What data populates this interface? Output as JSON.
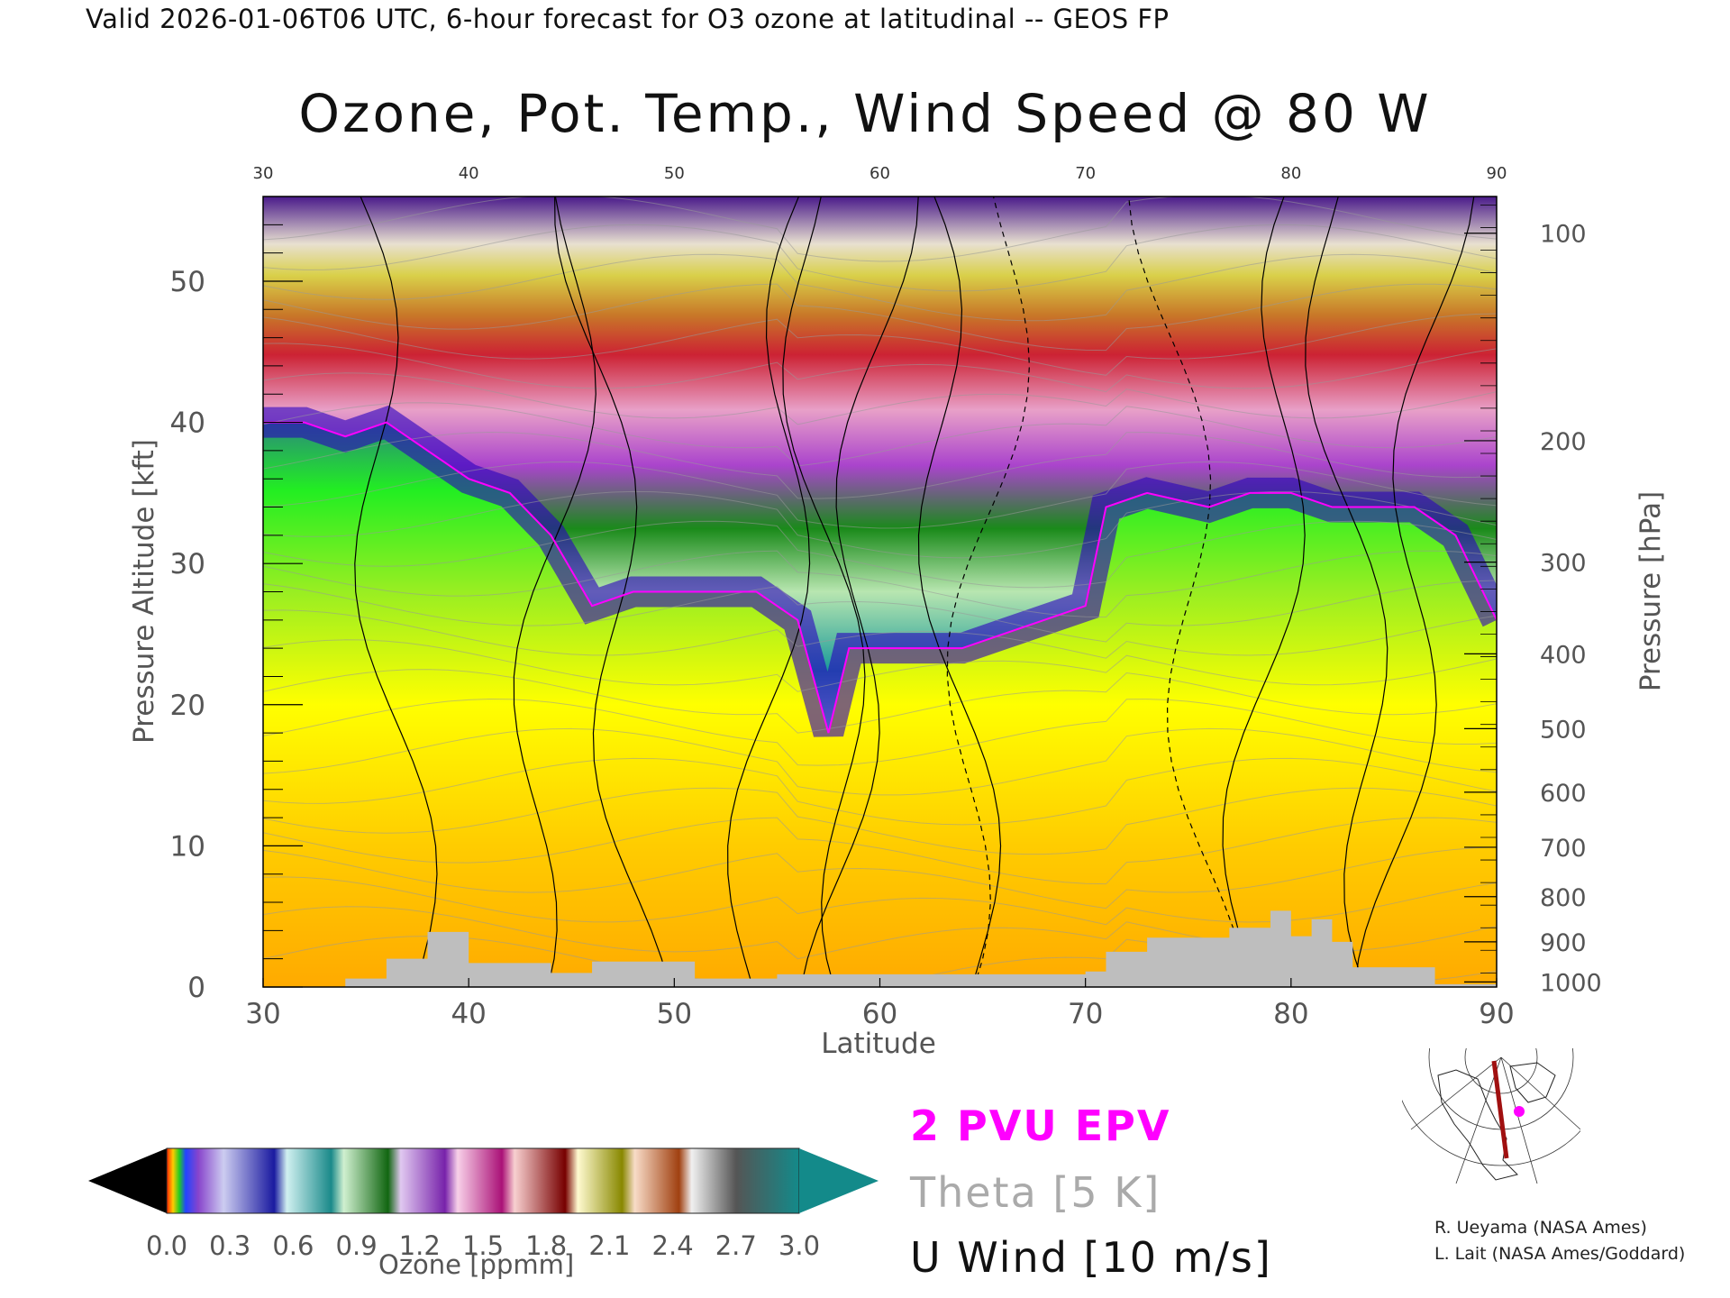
{
  "header": {
    "valid_line": "Valid 2026-01-06T06 UTC, 6-hour forecast for O3 ozone at latitudinal -- GEOS FP",
    "title": "Ozone, Pot. Temp., Wind Speed @ 80 W"
  },
  "chart_data": {
    "type": "heatmap",
    "title": "Ozone, Pot. Temp., Wind Speed @ 80 W",
    "xlabel": "Latitude",
    "ylabel_left": "Pressure Altitude [kft]",
    "ylabel_right": "Pressure [hPa]",
    "xlim": [
      30,
      90
    ],
    "ylim_kft": [
      0,
      56
    ],
    "x_ticks": [
      30,
      40,
      50,
      60,
      70,
      80,
      90
    ],
    "x_top_ticks": [
      30,
      40,
      50,
      60,
      70,
      80,
      90
    ],
    "y_left_ticks": [
      0,
      10,
      20,
      30,
      40,
      50
    ],
    "y_right_ticks": [
      {
        "label": "100",
        "kft": 53.4
      },
      {
        "label": "200",
        "kft": 38.7
      },
      {
        "label": "300",
        "kft": 30.1
      },
      {
        "label": "400",
        "kft": 23.6
      },
      {
        "label": "500",
        "kft": 18.3
      },
      {
        "label": "600",
        "kft": 13.8
      },
      {
        "label": "700",
        "kft": 9.9
      },
      {
        "label": "800",
        "kft": 6.4
      },
      {
        "label": "900",
        "kft": 3.2
      },
      {
        "label": "1000",
        "kft": 0.36
      }
    ],
    "tropopause_kft": [
      [
        30,
        40
      ],
      [
        32,
        40
      ],
      [
        34,
        39
      ],
      [
        36,
        40
      ],
      [
        38,
        38
      ],
      [
        40,
        36
      ],
      [
        42,
        35
      ],
      [
        44,
        32
      ],
      [
        46,
        27
      ],
      [
        48,
        28
      ],
      [
        50,
        28
      ],
      [
        52,
        28
      ],
      [
        54,
        28
      ],
      [
        56,
        26
      ],
      [
        57.5,
        18
      ],
      [
        58.5,
        24
      ],
      [
        60,
        24
      ],
      [
        62,
        24
      ],
      [
        64,
        24
      ],
      [
        66,
        25
      ],
      [
        68,
        26
      ],
      [
        70,
        27
      ],
      [
        71,
        34
      ],
      [
        73,
        35
      ],
      [
        76,
        34
      ],
      [
        78,
        35
      ],
      [
        80,
        35
      ],
      [
        82,
        34
      ],
      [
        84,
        34
      ],
      [
        86,
        34
      ],
      [
        88,
        32
      ],
      [
        90,
        26
      ]
    ],
    "ozone_colorbar": {
      "label": "Ozone [ppmm]",
      "ticks": [
        "0.0",
        "0.3",
        "0.6",
        "0.9",
        "1.2",
        "1.5",
        "1.8",
        "2.1",
        "2.4",
        "2.7",
        "3.0"
      ]
    },
    "legend": {
      "epv": "2 PVU EPV",
      "theta": "Theta [5 K]",
      "uwind": "U Wind [10 m/s]"
    }
  },
  "credits": {
    "line1": "R. Ueyama (NASA Ames)",
    "line2": "L. Lait (NASA Ames/Goddard)"
  },
  "colors": {
    "epv": "#ff00ff",
    "theta": "#aaaaaa",
    "terrain": "#bebebe"
  }
}
